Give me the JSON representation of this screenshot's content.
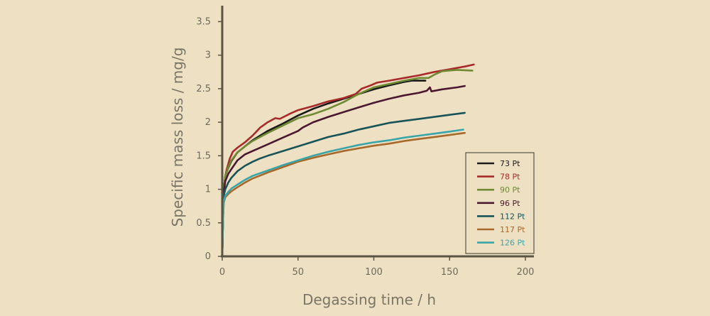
{
  "chart_data": {
    "type": "line",
    "title": "",
    "xlabel": "Degassing time / h",
    "ylabel": "Specific mass loss / mg/g",
    "xlim": [
      0,
      200
    ],
    "ylim": [
      0,
      3.6
    ],
    "xticks": [
      0,
      50,
      100,
      150,
      200
    ],
    "yticks": [
      0,
      0.5,
      1,
      1.5,
      2,
      2.5,
      3,
      3.5
    ],
    "xtick_labels": [
      "0",
      "50",
      "100",
      "150",
      "200"
    ],
    "ytick_labels": [
      "0",
      "0.5",
      "1",
      "1.5",
      "2",
      "2.5",
      "3",
      "3.5"
    ],
    "legend_position": "lower-right",
    "series": [
      {
        "name": "73 Pt",
        "color": "#1a1a1a",
        "label_color": "#1a1a1a",
        "points": [
          [
            0,
            0
          ],
          [
            0.5,
            0.6
          ],
          [
            1,
            1.0
          ],
          [
            2,
            1.2
          ],
          [
            4,
            1.32
          ],
          [
            6,
            1.42
          ],
          [
            10,
            1.55
          ],
          [
            15,
            1.64
          ],
          [
            20,
            1.73
          ],
          [
            30,
            1.87
          ],
          [
            40,
            1.98
          ],
          [
            50,
            2.1
          ],
          [
            60,
            2.2
          ],
          [
            70,
            2.28
          ],
          [
            80,
            2.35
          ],
          [
            90,
            2.42
          ],
          [
            100,
            2.49
          ],
          [
            110,
            2.55
          ],
          [
            120,
            2.6
          ],
          [
            125,
            2.62
          ],
          [
            130,
            2.62
          ],
          [
            134,
            2.62
          ]
        ]
      },
      {
        "name": "78 Pt",
        "color": "#a82a2a",
        "label_color": "#a82a2a",
        "points": [
          [
            0,
            0
          ],
          [
            0.5,
            0.6
          ],
          [
            1,
            1.0
          ],
          [
            2,
            1.2
          ],
          [
            3,
            1.3
          ],
          [
            5,
            1.46
          ],
          [
            7,
            1.56
          ],
          [
            10,
            1.62
          ],
          [
            15,
            1.7
          ],
          [
            20,
            1.8
          ],
          [
            25,
            1.92
          ],
          [
            30,
            2.0
          ],
          [
            35,
            2.06
          ],
          [
            38,
            2.05
          ],
          [
            45,
            2.13
          ],
          [
            50,
            2.18
          ],
          [
            60,
            2.24
          ],
          [
            70,
            2.31
          ],
          [
            80,
            2.36
          ],
          [
            88,
            2.42
          ],
          [
            92,
            2.5
          ],
          [
            98,
            2.55
          ],
          [
            102,
            2.59
          ],
          [
            110,
            2.62
          ],
          [
            120,
            2.66
          ],
          [
            130,
            2.7
          ],
          [
            140,
            2.75
          ],
          [
            150,
            2.79
          ],
          [
            160,
            2.83
          ],
          [
            166,
            2.86
          ]
        ]
      },
      {
        "name": "90 Pt",
        "color": "#6f8a32",
        "label_color": "#6f8a32",
        "points": [
          [
            0,
            0
          ],
          [
            0.5,
            0.6
          ],
          [
            1,
            1.0
          ],
          [
            2,
            1.2
          ],
          [
            4,
            1.33
          ],
          [
            6,
            1.43
          ],
          [
            10,
            1.55
          ],
          [
            15,
            1.64
          ],
          [
            20,
            1.72
          ],
          [
            30,
            1.84
          ],
          [
            40,
            1.95
          ],
          [
            50,
            2.06
          ],
          [
            60,
            2.12
          ],
          [
            70,
            2.2
          ],
          [
            80,
            2.3
          ],
          [
            90,
            2.42
          ],
          [
            100,
            2.52
          ],
          [
            110,
            2.57
          ],
          [
            120,
            2.62
          ],
          [
            130,
            2.66
          ],
          [
            136,
            2.66
          ],
          [
            140,
            2.71
          ],
          [
            145,
            2.76
          ],
          [
            155,
            2.78
          ],
          [
            165,
            2.77
          ]
        ]
      },
      {
        "name": "96 Pt",
        "color": "#4a1830",
        "label_color": "#4a1830",
        "points": [
          [
            0,
            0
          ],
          [
            0.5,
            0.6
          ],
          [
            1,
            0.95
          ],
          [
            2,
            1.12
          ],
          [
            4,
            1.23
          ],
          [
            6,
            1.3
          ],
          [
            10,
            1.43
          ],
          [
            15,
            1.52
          ],
          [
            20,
            1.57
          ],
          [
            30,
            1.67
          ],
          [
            40,
            1.77
          ],
          [
            50,
            1.87
          ],
          [
            53,
            1.92
          ],
          [
            60,
            2.0
          ],
          [
            70,
            2.08
          ],
          [
            80,
            2.15
          ],
          [
            90,
            2.22
          ],
          [
            100,
            2.29
          ],
          [
            110,
            2.35
          ],
          [
            120,
            2.4
          ],
          [
            130,
            2.44
          ],
          [
            135,
            2.47
          ],
          [
            137,
            2.52
          ],
          [
            138,
            2.46
          ],
          [
            145,
            2.49
          ],
          [
            155,
            2.52
          ],
          [
            160,
            2.54
          ]
        ]
      },
      {
        "name": "112 Pt",
        "color": "#175458",
        "label_color": "#175458",
        "points": [
          [
            0,
            0
          ],
          [
            0.5,
            0.6
          ],
          [
            1,
            0.9
          ],
          [
            2,
            1.0
          ],
          [
            4,
            1.1
          ],
          [
            6,
            1.17
          ],
          [
            10,
            1.27
          ],
          [
            15,
            1.35
          ],
          [
            20,
            1.41
          ],
          [
            25,
            1.46
          ],
          [
            30,
            1.5
          ],
          [
            40,
            1.57
          ],
          [
            50,
            1.64
          ],
          [
            60,
            1.71
          ],
          [
            70,
            1.78
          ],
          [
            80,
            1.83
          ],
          [
            90,
            1.89
          ],
          [
            100,
            1.94
          ],
          [
            110,
            1.99
          ],
          [
            120,
            2.02
          ],
          [
            130,
            2.05
          ],
          [
            140,
            2.08
          ],
          [
            150,
            2.11
          ],
          [
            160,
            2.14
          ]
        ]
      },
      {
        "name": "117 Pt",
        "color": "#a8682a",
        "label_color": "#a8682a",
        "points": [
          [
            0,
            0
          ],
          [
            0.5,
            0.55
          ],
          [
            1,
            0.8
          ],
          [
            2,
            0.88
          ],
          [
            4,
            0.93
          ],
          [
            6,
            0.97
          ],
          [
            10,
            1.03
          ],
          [
            15,
            1.1
          ],
          [
            20,
            1.16
          ],
          [
            30,
            1.25
          ],
          [
            40,
            1.33
          ],
          [
            50,
            1.41
          ],
          [
            60,
            1.47
          ],
          [
            70,
            1.52
          ],
          [
            80,
            1.57
          ],
          [
            90,
            1.61
          ],
          [
            100,
            1.65
          ],
          [
            110,
            1.68
          ],
          [
            120,
            1.72
          ],
          [
            130,
            1.75
          ],
          [
            140,
            1.78
          ],
          [
            150,
            1.81
          ],
          [
            160,
            1.84
          ]
        ]
      },
      {
        "name": "126 Pt",
        "color": "#3aa5a8",
        "label_color": "#3aa5a8",
        "points": [
          [
            0,
            0
          ],
          [
            0.5,
            0.55
          ],
          [
            1,
            0.82
          ],
          [
            2,
            0.9
          ],
          [
            4,
            0.96
          ],
          [
            6,
            1.01
          ],
          [
            10,
            1.07
          ],
          [
            15,
            1.14
          ],
          [
            20,
            1.2
          ],
          [
            30,
            1.28
          ],
          [
            40,
            1.36
          ],
          [
            50,
            1.43
          ],
          [
            60,
            1.5
          ],
          [
            70,
            1.56
          ],
          [
            80,
            1.61
          ],
          [
            90,
            1.66
          ],
          [
            100,
            1.7
          ],
          [
            110,
            1.73
          ],
          [
            120,
            1.77
          ],
          [
            130,
            1.8
          ],
          [
            140,
            1.83
          ],
          [
            150,
            1.86
          ],
          [
            159,
            1.89
          ]
        ]
      }
    ]
  }
}
